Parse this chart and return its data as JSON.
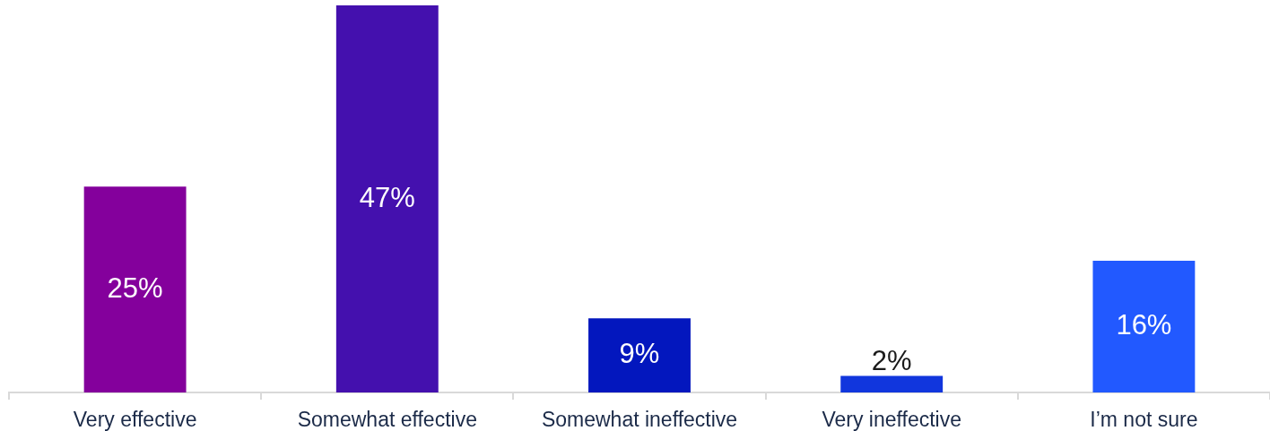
{
  "chart_data": {
    "type": "bar",
    "categories": [
      "Very effective",
      "Somewhat effective",
      "Somewhat ineffective",
      "Very ineffective",
      "I’m not sure"
    ],
    "values": [
      25,
      47,
      9,
      2,
      16
    ],
    "colors": [
      "#84009c",
      "#4410ae",
      "#0317be",
      "#1136dd",
      "#2259ff"
    ],
    "value_labels": [
      "25%",
      "47%",
      "9%",
      "2%",
      "16%"
    ]
  }
}
